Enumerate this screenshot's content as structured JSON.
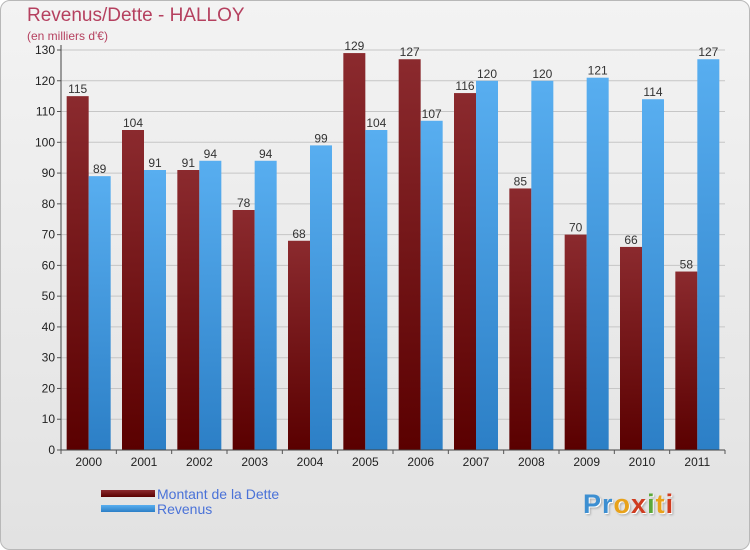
{
  "colors": {
    "title": "#b5405f",
    "axis_text": "#222222",
    "grid": "#c6c6c6",
    "legend_text": "#4a72d8",
    "debt_top": "#8b2a2e",
    "debt_bottom": "#5a0000",
    "revenue_top": "#58aef0",
    "revenue_bottom": "#2c7fc6"
  },
  "chart_data": {
    "type": "bar",
    "title": "Revenus/Dette - HALLOY",
    "subtitle": "(en milliers d'€)",
    "xlabel": "",
    "ylabel": "",
    "ylim": [
      0,
      130
    ],
    "yticks": [
      0,
      10,
      20,
      30,
      40,
      50,
      60,
      70,
      80,
      90,
      100,
      110,
      120,
      130
    ],
    "grid": true,
    "legend_position": "bottom-left",
    "categories": [
      "2000",
      "2001",
      "2002",
      "2003",
      "2004",
      "2005",
      "2006",
      "2007",
      "2008",
      "2009",
      "2010",
      "2011"
    ],
    "series": [
      {
        "name": "Montant de la Dette",
        "values": [
          115,
          104,
          91,
          78,
          68,
          129,
          127,
          116,
          85,
          70,
          66,
          58
        ]
      },
      {
        "name": "Revenus",
        "values": [
          89,
          91,
          94,
          94,
          99,
          104,
          107,
          120,
          120,
          121,
          114,
          127
        ]
      }
    ]
  },
  "logo": {
    "letters": [
      {
        "char": "P",
        "color": "#3d8fd1"
      },
      {
        "char": "r",
        "color": "#3d8fd1"
      },
      {
        "char": "o",
        "color": "#e8a21a"
      },
      {
        "char": "x",
        "color": "#cf3b1f"
      },
      {
        "char": "i",
        "color": "#5ba83a"
      },
      {
        "char": "t",
        "color": "#e8a21a"
      },
      {
        "char": "i",
        "color": "#cf3b1f"
      }
    ]
  }
}
